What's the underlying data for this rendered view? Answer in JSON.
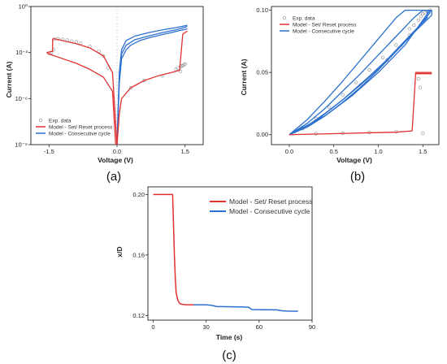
{
  "colors": {
    "model_setreset": "#e03030",
    "model_consecutive": "#2a6fcf",
    "exp": "#8c8c8c",
    "axis": "#222222"
  },
  "chart_data": [
    {
      "id": "a",
      "type": "line",
      "panel_label": "(a)",
      "xlabel": "Voltage (V)",
      "ylabel": "Current (A)",
      "xlim": [
        -1.9,
        1.9
      ],
      "ylim_log10": [
        -9,
        0
      ],
      "yscale": "log",
      "xticks": [
        -1.5,
        0.0,
        1.5
      ],
      "xtick_labels": [
        "-1.5",
        "0.0",
        "1.5"
      ],
      "yticks_log10": [
        0,
        -3,
        -6,
        -9
      ],
      "ytick_labels": [
        "10⁰",
        "10⁻³",
        "10⁻⁶",
        "10⁻⁹"
      ],
      "legend": {
        "placement": "bottom-left",
        "entries": [
          "Exp. data",
          "Model - Set/ Reset process",
          "Model - Consecutive cycle"
        ]
      },
      "series": [
        {
          "name": "Model - Consecutive cycle",
          "kind": "line",
          "color_key": "model_consecutive",
          "curves": [
            {
              "x": [
                0.0,
                0.05,
                0.1,
                0.2,
                0.3,
                0.5,
                0.7,
                1.0,
                1.2,
                1.4,
                1.5,
                1.55
              ],
              "y": [
                1e-09,
                1e-05,
                0.0004,
                0.0015,
                0.003,
                0.006,
                0.009,
                0.015,
                0.02,
                0.028,
                0.032,
                0.035
              ]
            },
            {
              "x": [
                0.0,
                0.05,
                0.1,
                0.2,
                0.4,
                0.7,
                1.0,
                1.3,
                1.55
              ],
              "y": [
                1e-09,
                5e-05,
                0.0015,
                0.006,
                0.012,
                0.02,
                0.03,
                0.042,
                0.06
              ]
            },
            {
              "x": [
                0.0,
                0.05,
                0.1,
                0.2,
                0.4,
                0.7,
                1.0,
                1.3,
                1.5,
                1.55
              ],
              "y": [
                1e-09,
                2e-05,
                0.0008,
                0.003,
                0.007,
                0.012,
                0.02,
                0.03,
                0.045,
                0.05
              ]
            }
          ]
        },
        {
          "name": "Model - Set/ Reset process",
          "kind": "line",
          "color_key": "model_setreset",
          "curves": [
            {
              "x": [
                0.0,
                0.05,
                0.1,
                0.3,
                0.6,
                0.9,
                1.2,
                1.38,
                1.45
              ],
              "y": [
                1e-09,
                1e-07,
                1e-06,
                5e-06,
                1.5e-05,
                3e-05,
                5e-05,
                7e-05,
                0.016
              ]
            },
            {
              "x": [
                1.45,
                1.5,
                1.55
              ],
              "y": [
                0.016,
                0.02,
                0.025
              ]
            },
            {
              "x": [
                -0.03,
                -0.1,
                -0.3,
                -0.6,
                -0.9,
                -1.2,
                -1.5,
                -1.55
              ],
              "y": [
                1e-09,
                3e-06,
                2.5e-05,
                8e-05,
                0.0002,
                0.0004,
                0.0008,
                0.001
              ]
            },
            {
              "x": [
                0.0,
                -0.1,
                -0.3,
                -0.6,
                -0.9,
                -1.2,
                -1.35,
                -1.42
              ],
              "y": [
                1e-09,
                5e-05,
                0.0006,
                0.002,
                0.0038,
                0.006,
                0.0075,
                0.008
              ]
            },
            {
              "x": [
                -1.42,
                -1.42,
                -1.55
              ],
              "y": [
                0.008,
                0.0012,
                0.001
              ]
            }
          ]
        },
        {
          "name": "Exp. data",
          "kind": "scatter",
          "color_key": "exp",
          "x": [
            -1.5,
            -1.45,
            -1.4,
            -1.38,
            -1.3,
            -1.2,
            -1.1,
            -1.0,
            -0.9,
            -0.8,
            -0.6,
            -0.4,
            -0.3,
            -0.2,
            1.3,
            1.35,
            1.4,
            1.42,
            1.45,
            1.48,
            1.5,
            0.3,
            0.6,
            1.0,
            1.4
          ],
          "y": [
            0.0009,
            0.001,
            0.0015,
            0.0075,
            0.0078,
            0.0072,
            0.0065,
            0.0055,
            0.005,
            0.004,
            0.0025,
            0.0012,
            0.0006,
            0.0001,
            8e-05,
            0.0001,
            0.00012,
            0.00013,
            0.00014,
            0.00016,
            0.00018,
            5e-06,
            1.5e-05,
            3e-05,
            6e-05
          ]
        }
      ]
    },
    {
      "id": "b",
      "type": "line",
      "panel_label": "(b)",
      "xlabel": "Voltage (V)",
      "ylabel": "Current (A)",
      "xlim": [
        -0.2,
        1.68
      ],
      "ylim": [
        -0.008,
        0.103
      ],
      "xticks": [
        0.0,
        0.5,
        1.0,
        1.5
      ],
      "xtick_labels": [
        "0.0",
        "0.5",
        "1.0",
        "1.5"
      ],
      "yticks": [
        0.0,
        0.05,
        0.1
      ],
      "ytick_labels": [
        "0.00",
        "0.05",
        "0.10"
      ],
      "legend": {
        "placement": "top-left",
        "entries": [
          "Exp. data",
          "Model - Set/ Reset process",
          "Model - Consecutive cycle"
        ]
      },
      "series": [
        {
          "name": "Model - Consecutive cycle",
          "kind": "line",
          "color_key": "model_consecutive",
          "curves": [
            {
              "x": [
                0.0,
                0.2,
                0.4,
                0.6,
                0.8,
                1.0,
                1.2,
                1.3,
                1.55,
                1.55
              ],
              "y": [
                0.0,
                0.012,
                0.027,
                0.043,
                0.06,
                0.077,
                0.094,
                0.1,
                0.1,
                0.094
              ]
            },
            {
              "x": [
                1.55,
                1.4,
                1.2,
                1.0,
                0.8,
                0.6,
                0.4,
                0.2,
                0.0
              ],
              "y": [
                0.094,
                0.083,
                0.068,
                0.053,
                0.04,
                0.028,
                0.017,
                0.007,
                0.0
              ]
            },
            {
              "x": [
                0.0,
                0.2,
                0.4,
                0.6,
                0.8,
                1.0,
                1.2,
                1.4,
                1.5,
                1.6,
                1.6
              ],
              "y": [
                0.0,
                0.009,
                0.021,
                0.035,
                0.049,
                0.064,
                0.079,
                0.094,
                0.1,
                0.1,
                0.096
              ]
            },
            {
              "x": [
                1.6,
                1.4,
                1.2,
                1.0,
                0.8,
                0.6,
                0.4,
                0.2,
                0.0
              ],
              "y": [
                0.096,
                0.082,
                0.067,
                0.052,
                0.038,
                0.026,
                0.015,
                0.006,
                0.0
              ]
            },
            {
              "x": [
                0.0,
                0.3,
                0.6,
                0.9,
                1.2,
                1.4,
                1.58,
                1.58
              ],
              "y": [
                0.0,
                0.011,
                0.028,
                0.047,
                0.067,
                0.082,
                0.098,
                0.1
              ]
            },
            {
              "x": [
                1.58,
                1.3,
                1.0,
                0.7,
                0.4,
                0.0
              ],
              "y": [
                0.1,
                0.072,
                0.05,
                0.031,
                0.015,
                0.0
              ]
            }
          ]
        },
        {
          "name": "Model - Set/ Reset process",
          "kind": "line",
          "color_key": "model_setreset",
          "curves": [
            {
              "x": [
                0.0,
                0.3,
                0.6,
                0.9,
                1.2,
                1.38,
                1.42,
                1.6
              ],
              "y": [
                0.0,
                0.0005,
                0.001,
                0.0015,
                0.002,
                0.003,
                0.05,
                0.05
              ]
            },
            {
              "x": [
                1.42,
                1.42,
                1.6
              ],
              "y": [
                0.05,
                0.049,
                0.049
              ]
            }
          ]
        },
        {
          "name": "Exp. data",
          "kind": "scatter",
          "color_key": "exp",
          "x": [
            0.05,
            0.15,
            0.3,
            0.45,
            0.6,
            0.75,
            0.9,
            1.05,
            1.2,
            1.35,
            1.4,
            1.45,
            1.48,
            1.5,
            1.52,
            1.55,
            1.58,
            1.45,
            1.47,
            0.3,
            0.6,
            0.9,
            1.2,
            1.5,
            1.35,
            1.1,
            0.8
          ],
          "y": [
            0.001,
            0.005,
            0.013,
            0.022,
            0.032,
            0.042,
            0.052,
            0.062,
            0.072,
            0.085,
            0.088,
            0.092,
            0.095,
            0.097,
            0.098,
            0.099,
            0.1,
            0.045,
            0.038,
            0.0008,
            0.0012,
            0.0018,
            0.0025,
            0.001,
            0.08,
            0.06,
            0.04
          ]
        }
      ]
    },
    {
      "id": "c",
      "type": "line",
      "panel_label": "(c)",
      "xlabel": "Time (s)",
      "ylabel": "x/D",
      "xlim": [
        -3,
        90
      ],
      "ylim": [
        0.117,
        0.205
      ],
      "xticks": [
        0,
        30,
        60,
        90
      ],
      "xtick_labels": [
        "0",
        "30",
        "60",
        "90"
      ],
      "yticks": [
        0.12,
        0.16,
        0.2
      ],
      "ytick_labels": [
        "0.12",
        "0.16",
        "0.20"
      ],
      "legend": {
        "placement": "top-right",
        "entries": [
          "Model - Set/ Reset process",
          "Model - Consecutive cycle"
        ]
      },
      "series": [
        {
          "name": "Model - Set/ Reset process",
          "kind": "line",
          "color_key": "model_setreset",
          "curves": [
            {
              "x": [
                0,
                11,
                11.5,
                12,
                12.5,
                13,
                14,
                15,
                16,
                18,
                20,
                23
              ],
              "y": [
                0.2,
                0.2,
                0.18,
                0.16,
                0.145,
                0.135,
                0.13,
                0.128,
                0.1275,
                0.1272,
                0.1271,
                0.1271
              ]
            }
          ]
        },
        {
          "name": "Model - Consecutive cycle",
          "kind": "line",
          "color_key": "model_consecutive",
          "curves": [
            {
              "x": [
                23,
                30,
                33,
                36,
                45,
                50,
                54,
                56,
                70,
                73,
                76,
                80,
                82
              ],
              "y": [
                0.1271,
                0.1271,
                0.1268,
                0.126,
                0.1258,
                0.1257,
                0.1255,
                0.124,
                0.1238,
                0.1232,
                0.123,
                0.1229,
                0.1229
              ]
            }
          ]
        }
      ]
    }
  ]
}
